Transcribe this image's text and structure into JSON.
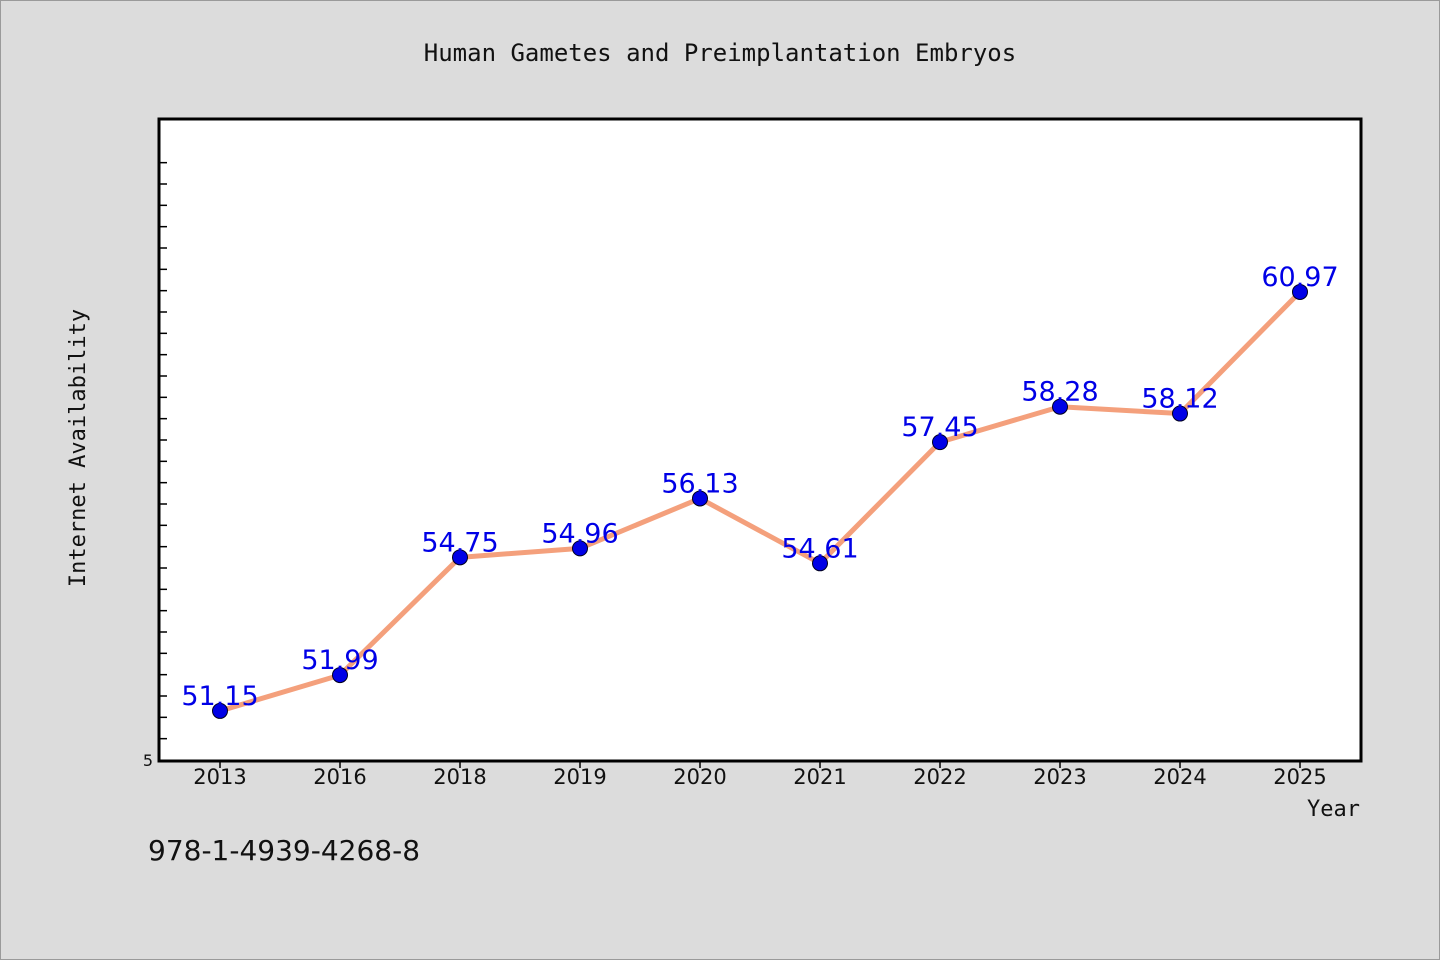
{
  "chart_data": {
    "type": "line",
    "title": "Human Gametes and Preimplantation Embryos",
    "xlabel": "Year",
    "ylabel": "Internet Availability",
    "categories": [
      "2013",
      "2016",
      "2018",
      "2019",
      "2020",
      "2021",
      "2022",
      "2023",
      "2024",
      "2025"
    ],
    "series": [
      {
        "values": [
          51.15,
          51.99,
          54.75,
          54.96,
          56.13,
          54.61,
          57.45,
          58.28,
          58.12,
          60.97
        ],
        "labels": [
          "51.15",
          "51.99",
          "54.75",
          "54.96",
          "56.13",
          "54.61",
          "57.45",
          "58.28",
          "58.12",
          "60.97"
        ],
        "line_color": "#f4a07c",
        "marker_color": "#0000e6",
        "label_color": "#0000e6"
      }
    ],
    "ylim": [
      50,
      65
    ],
    "y_tick_label": "5",
    "grid": false,
    "legend": "none"
  },
  "footer": {
    "isbn": "978-1-4939-4268-8"
  }
}
